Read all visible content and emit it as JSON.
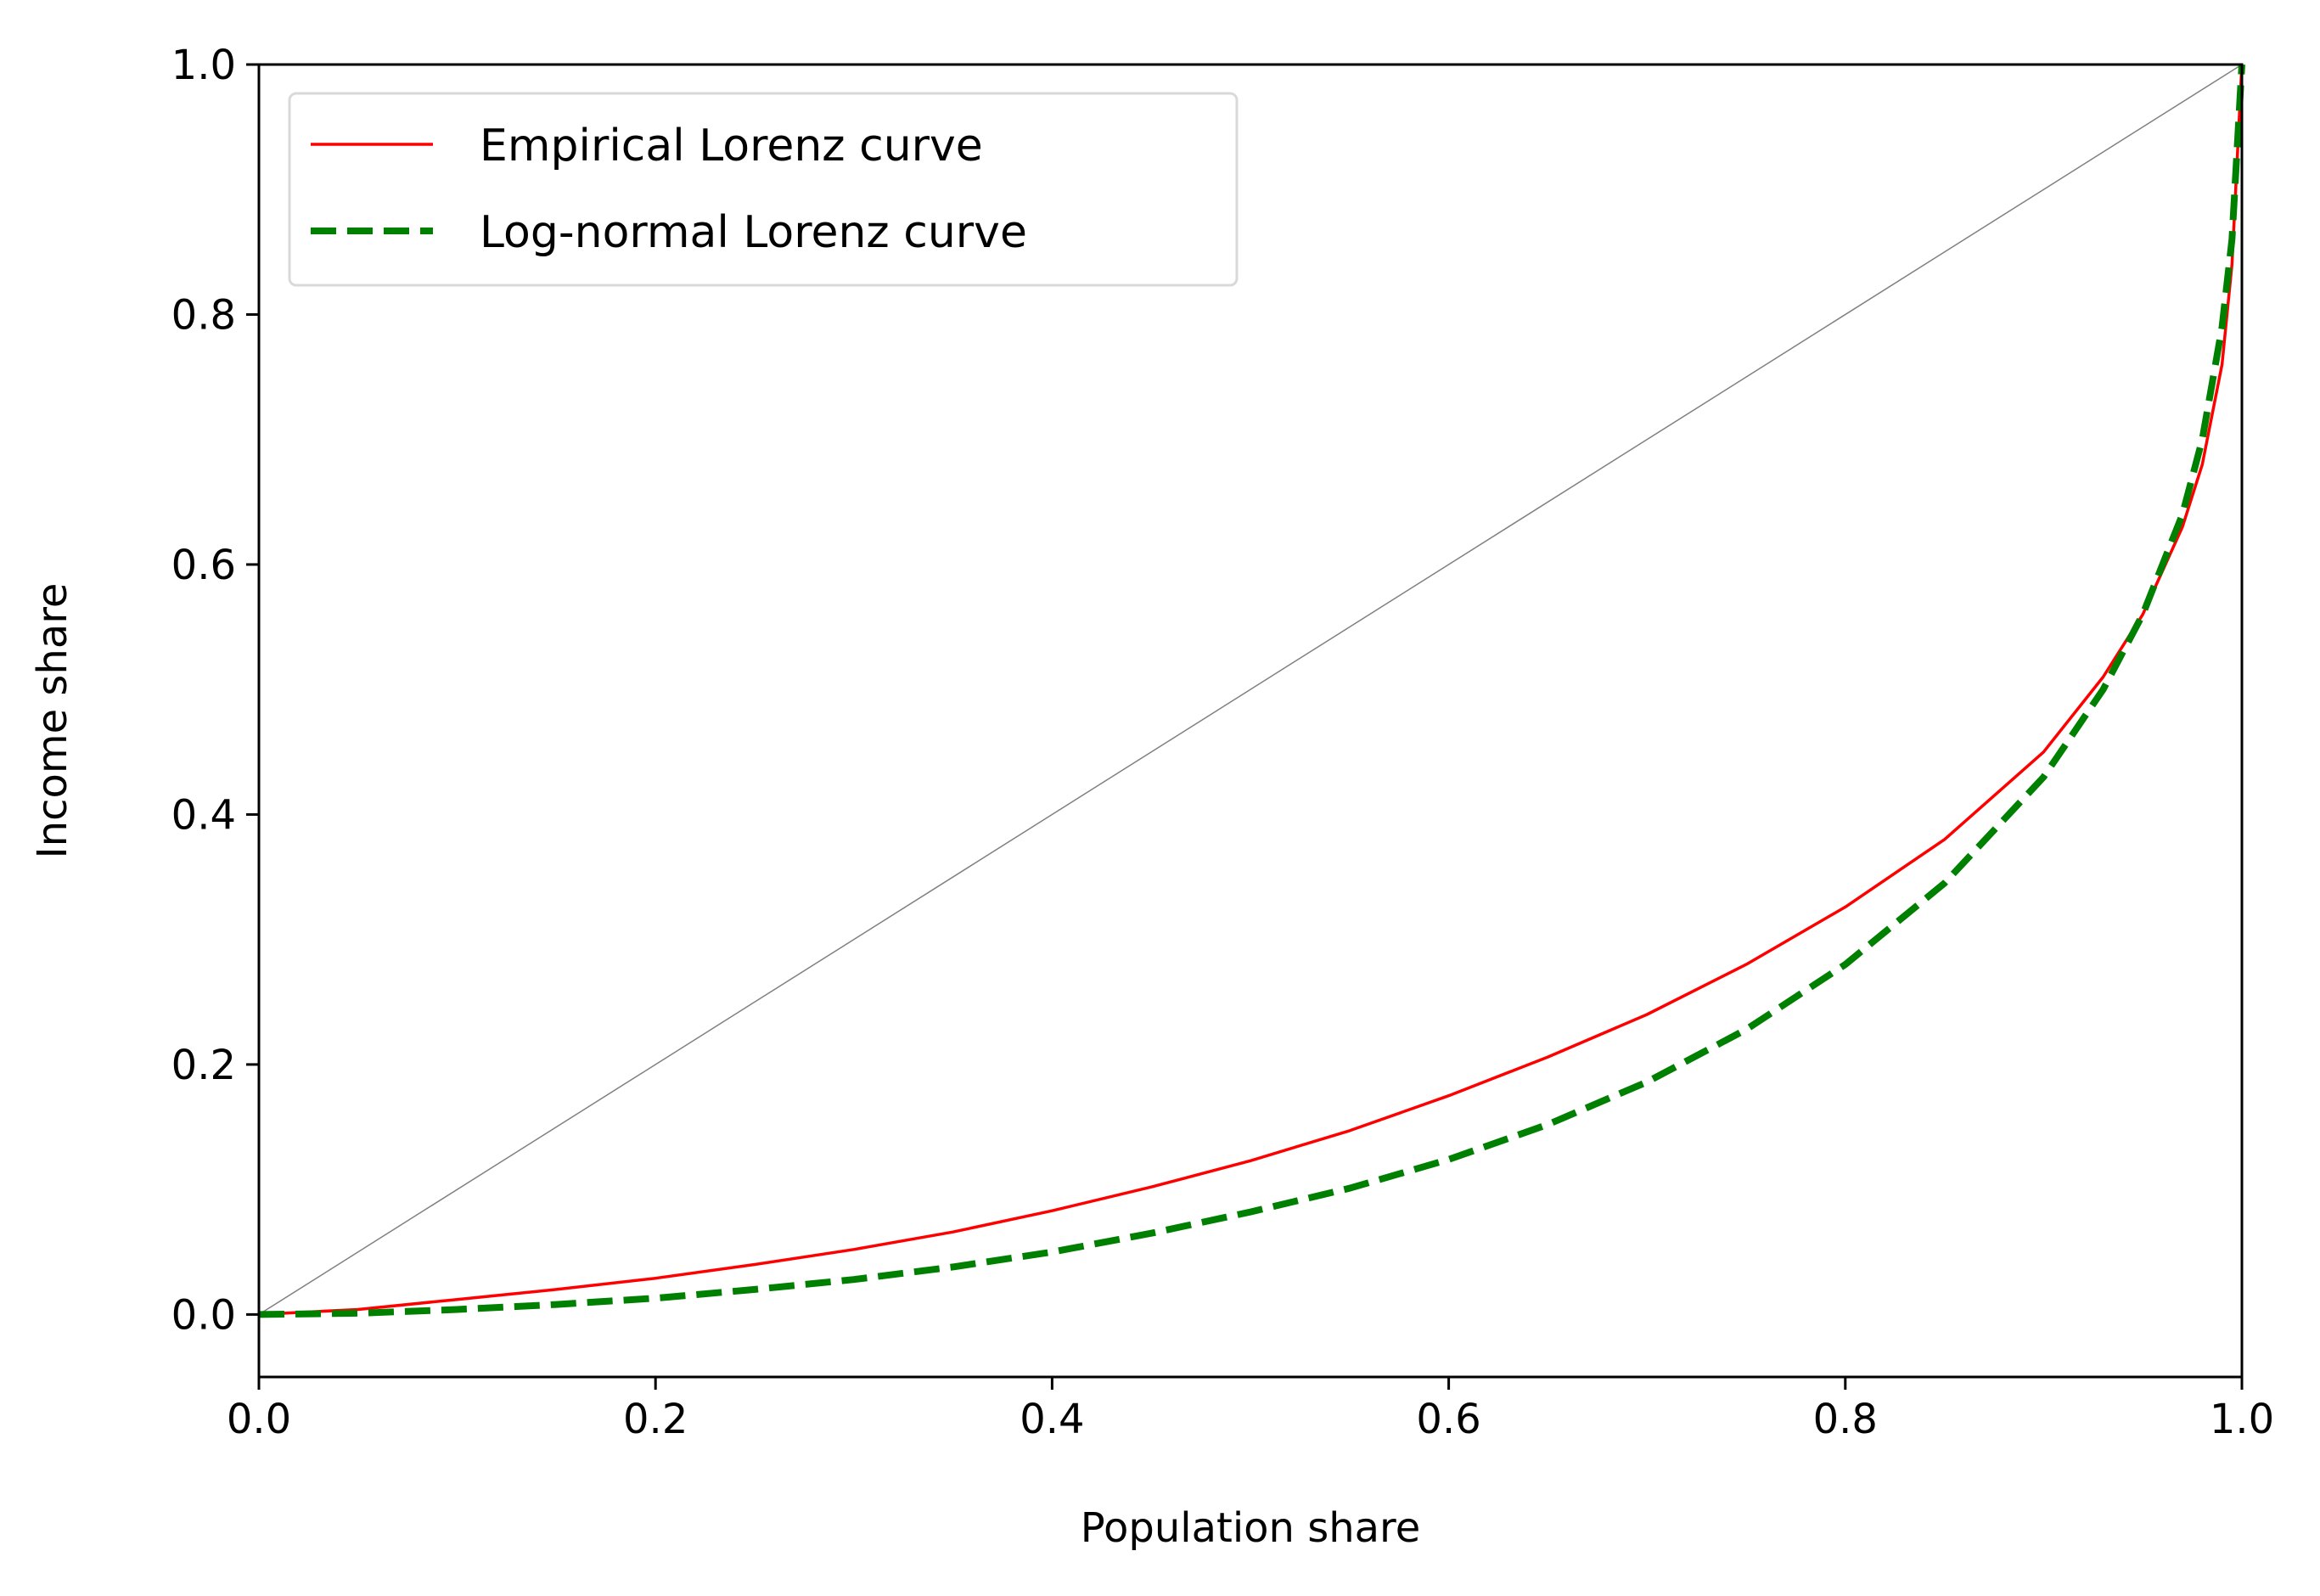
{
  "chart_data": {
    "type": "line",
    "title": "",
    "xlabel": "Population share",
    "ylabel": "Income share",
    "xlim": [
      0.0,
      1.0
    ],
    "ylim": [
      -0.05,
      1.0
    ],
    "xticks": [
      0.0,
      0.2,
      0.4,
      0.6,
      0.8,
      1.0
    ],
    "xtick_labels": [
      "0.0",
      "0.2",
      "0.4",
      "0.6",
      "0.8",
      "1.0"
    ],
    "yticks": [
      0.0,
      0.2,
      0.4,
      0.6,
      0.8,
      1.0
    ],
    "ytick_labels": [
      "0.0",
      "0.2",
      "0.4",
      "0.6",
      "0.8",
      "1.0"
    ],
    "grid": false,
    "legend_position": "upper-left",
    "reference_line": {
      "x": [
        0.0,
        1.0
      ],
      "y": [
        0.0,
        1.0
      ],
      "color": "#808080"
    },
    "series": [
      {
        "name": "Empirical Lorenz curve",
        "color": "#ff0000",
        "style": "solid",
        "x": [
          0.0,
          0.05,
          0.1,
          0.15,
          0.2,
          0.25,
          0.3,
          0.35,
          0.4,
          0.45,
          0.5,
          0.55,
          0.6,
          0.65,
          0.7,
          0.75,
          0.8,
          0.85,
          0.9,
          0.93,
          0.95,
          0.97,
          0.98,
          0.99,
          0.995,
          1.0
        ],
        "y": [
          0.0,
          0.004,
          0.012,
          0.02,
          0.029,
          0.04,
          0.052,
          0.066,
          0.083,
          0.102,
          0.123,
          0.147,
          0.175,
          0.206,
          0.24,
          0.28,
          0.326,
          0.38,
          0.45,
          0.51,
          0.56,
          0.63,
          0.68,
          0.76,
          0.84,
          1.0
        ]
      },
      {
        "name": "Log-normal Lorenz curve",
        "color": "#008000",
        "style": "dashed",
        "x": [
          0.0,
          0.05,
          0.1,
          0.15,
          0.2,
          0.25,
          0.3,
          0.35,
          0.4,
          0.45,
          0.5,
          0.55,
          0.6,
          0.65,
          0.7,
          0.75,
          0.8,
          0.85,
          0.9,
          0.93,
          0.95,
          0.97,
          0.98,
          0.99,
          0.995,
          1.0
        ],
        "y": [
          0.0,
          0.001,
          0.004,
          0.008,
          0.013,
          0.02,
          0.028,
          0.038,
          0.05,
          0.065,
          0.082,
          0.101,
          0.124,
          0.152,
          0.186,
          0.228,
          0.28,
          0.345,
          0.43,
          0.5,
          0.56,
          0.64,
          0.7,
          0.79,
          0.86,
          1.0
        ]
      }
    ]
  }
}
